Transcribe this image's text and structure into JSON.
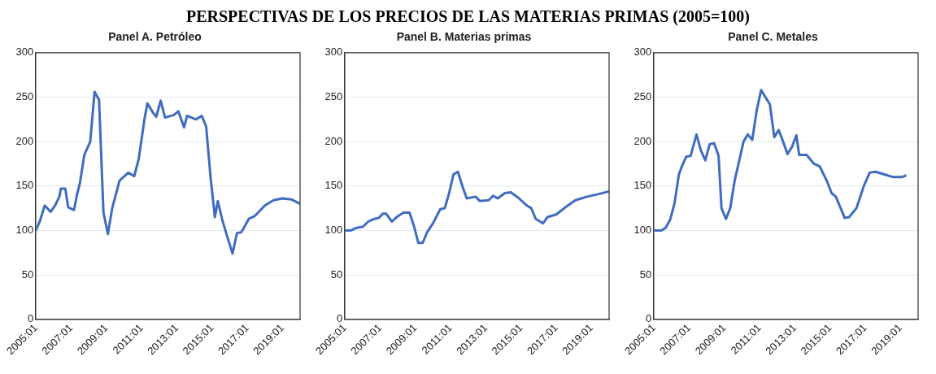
{
  "chart_data": [
    {
      "type": "other",
      "title": "PERSPECTIVAS DE LOS PRECIOS DE LAS MATERIAS PRIMAS (2005=100)"
    },
    {
      "type": "line",
      "title": "Panel A. Petróleo",
      "color": "#3f6cc0",
      "grid": "y",
      "xlim": [
        "2005-01",
        "2020-01"
      ],
      "ylim": [
        0,
        300
      ],
      "yticks": [
        0,
        50,
        100,
        150,
        200,
        250,
        300
      ],
      "xticks": [
        {
          "value": "2005-01",
          "label": "2005:01"
        },
        {
          "value": "2007-01",
          "label": "2007:01"
        },
        {
          "value": "2009-01",
          "label": "2009:01"
        },
        {
          "value": "2011-01",
          "label": "2011:01"
        },
        {
          "value": "2013-01",
          "label": "2013:01"
        },
        {
          "value": "2015-01",
          "label": "2015:01"
        },
        {
          "value": "2017-01",
          "label": "2017:01"
        },
        {
          "value": "2019-01",
          "label": "2019:01"
        }
      ],
      "x": [
        "2005-01",
        "2005-04",
        "2005-07",
        "2005-11",
        "2006-02",
        "2006-05",
        "2006-06",
        "2006-09",
        "2006-11",
        "2007-03",
        "2007-05",
        "2007-07",
        "2007-10",
        "2008-02",
        "2008-05",
        "2008-08",
        "2008-11",
        "2009-02",
        "2009-05",
        "2009-10",
        "2010-04",
        "2010-08",
        "2010-11",
        "2011-03",
        "2011-05",
        "2011-09",
        "2011-11",
        "2012-02",
        "2012-05",
        "2012-11",
        "2013-02",
        "2013-06",
        "2013-08",
        "2014-02",
        "2014-06",
        "2014-09",
        "2014-12",
        "2015-03",
        "2015-05",
        "2015-08",
        "2015-11",
        "2016-03",
        "2016-06",
        "2016-09",
        "2017-02",
        "2017-06",
        "2018-01",
        "2018-07",
        "2019-01",
        "2019-07",
        "2020-01"
      ],
      "values": [
        100,
        112,
        128,
        121,
        128,
        138,
        147,
        147,
        126,
        123,
        140,
        153,
        185,
        200,
        256,
        247,
        120,
        96,
        125,
        156,
        165,
        161,
        180,
        225,
        243,
        232,
        228,
        246,
        227,
        230,
        234,
        216,
        229,
        225,
        229,
        217,
        160,
        115,
        133,
        112,
        95,
        74,
        97,
        98,
        113,
        116,
        128,
        134,
        136,
        135,
        130
      ]
    },
    {
      "type": "line",
      "title": "Panel B. Materias primas",
      "color": "#3f6cc0",
      "grid": "y",
      "xlim": [
        "2005-01",
        "2020-01"
      ],
      "ylim": [
        0,
        300
      ],
      "yticks": [
        0,
        50,
        100,
        150,
        200,
        250,
        300
      ],
      "xticks": [
        {
          "value": "2005-01",
          "label": "2005:01"
        },
        {
          "value": "2007-01",
          "label": "2007:01"
        },
        {
          "value": "2009-01",
          "label": "2009:01"
        },
        {
          "value": "2011-01",
          "label": "2011:01"
        },
        {
          "value": "2013-01",
          "label": "2013:01"
        },
        {
          "value": "2015-01",
          "label": "2015:01"
        },
        {
          "value": "2017-01",
          "label": "2017:01"
        },
        {
          "value": "2019-01",
          "label": "2019:01"
        }
      ],
      "x": [
        "2005-01",
        "2005-05",
        "2005-09",
        "2006-01",
        "2006-05",
        "2006-09",
        "2006-12",
        "2007-03",
        "2007-05",
        "2007-09",
        "2008-01",
        "2008-05",
        "2008-09",
        "2008-12",
        "2009-03",
        "2009-06",
        "2009-09",
        "2010-01",
        "2010-06",
        "2010-09",
        "2010-12",
        "2011-03",
        "2011-06",
        "2011-09",
        "2011-12",
        "2012-06",
        "2012-09",
        "2013-03",
        "2013-06",
        "2013-09",
        "2014-02",
        "2014-06",
        "2014-11",
        "2015-05",
        "2015-08",
        "2015-11",
        "2016-04",
        "2016-07",
        "2017-01",
        "2017-08",
        "2018-02",
        "2018-10",
        "2019-06",
        "2020-01"
      ],
      "values": [
        100,
        100,
        103,
        104,
        110,
        113,
        114,
        119,
        119,
        110,
        116,
        120,
        120,
        105,
        86,
        86,
        98,
        108,
        124,
        125,
        142,
        163,
        166,
        150,
        136,
        138,
        133,
        134,
        139,
        136,
        142,
        143,
        137,
        128,
        125,
        113,
        108,
        115,
        118,
        127,
        134,
        138,
        141,
        144
      ]
    },
    {
      "type": "line",
      "title": "Panel C. Metales",
      "color": "#3f6cc0",
      "grid": "y",
      "xlim": [
        "2005-01",
        "2020-01"
      ],
      "ylim": [
        0,
        300
      ],
      "yticks": [
        0,
        50,
        100,
        150,
        200,
        250,
        300
      ],
      "xticks": [
        {
          "value": "2005-01",
          "label": "2005:01"
        },
        {
          "value": "2007-01",
          "label": "2007:01"
        },
        {
          "value": "2009-01",
          "label": "2009:01"
        },
        {
          "value": "2011-01",
          "label": "2011:01"
        },
        {
          "value": "2013-01",
          "label": "2013:01"
        },
        {
          "value": "2015-01",
          "label": "2015:01"
        },
        {
          "value": "2017-01",
          "label": "2017:01"
        },
        {
          "value": "2019-01",
          "label": "2019:01"
        }
      ],
      "x": [
        "2005-01",
        "2005-06",
        "2005-09",
        "2005-12",
        "2006-03",
        "2006-06",
        "2006-08",
        "2006-11",
        "2007-02",
        "2007-06",
        "2007-09",
        "2007-12",
        "2008-03",
        "2008-06",
        "2008-09",
        "2008-11",
        "2009-02",
        "2009-05",
        "2009-08",
        "2010-02",
        "2010-05",
        "2010-08",
        "2010-11",
        "2011-02",
        "2011-05",
        "2011-08",
        "2011-11",
        "2012-02",
        "2012-05",
        "2012-08",
        "2012-11",
        "2013-02",
        "2013-04",
        "2013-09",
        "2014-02",
        "2014-06",
        "2014-11",
        "2015-02",
        "2015-05",
        "2015-11",
        "2016-02",
        "2016-07",
        "2016-12",
        "2017-04",
        "2017-08",
        "2018-02",
        "2018-08",
        "2019-02",
        "2019-05"
      ],
      "values": [
        100,
        100,
        103,
        112,
        130,
        163,
        172,
        183,
        184,
        208,
        190,
        179,
        197,
        198,
        184,
        125,
        113,
        125,
        156,
        200,
        208,
        202,
        235,
        258,
        250,
        242,
        205,
        213,
        200,
        186,
        194,
        207,
        185,
        185,
        175,
        172,
        155,
        142,
        138,
        114,
        115,
        125,
        150,
        165,
        166,
        163,
        160,
        160,
        162
      ]
    }
  ]
}
